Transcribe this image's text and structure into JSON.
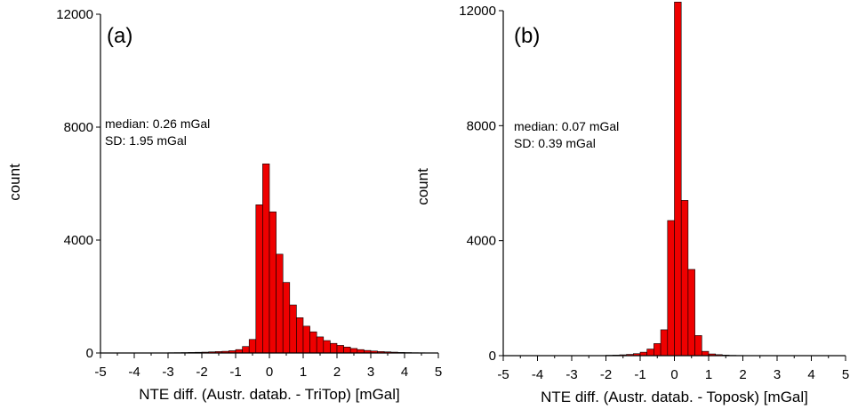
{
  "chart_data": [
    {
      "type": "bar",
      "panel_label": "(a)",
      "xlabel": "NTE diff. (Austr. datab. - TriTop) [mGal]",
      "ylabel": "count",
      "xlim": [
        -5,
        5
      ],
      "ylim": [
        0,
        12000
      ],
      "xticks": [
        -5,
        -4,
        -3,
        -2,
        -1,
        0,
        1,
        2,
        3,
        4,
        5
      ],
      "yticks": [
        0,
        4000,
        8000,
        12000
      ],
      "bin_width": 0.2,
      "annotation": [
        "median: 0.26 mGal",
        "SD: 1.95 mGal"
      ],
      "bar_color": "#ee0000",
      "bins": [
        {
          "x0": -3.0,
          "count": 10
        },
        {
          "x0": -2.8,
          "count": 12
        },
        {
          "x0": -2.6,
          "count": 15
        },
        {
          "x0": -2.4,
          "count": 20
        },
        {
          "x0": -2.2,
          "count": 25
        },
        {
          "x0": -2.0,
          "count": 30
        },
        {
          "x0": -1.8,
          "count": 40
        },
        {
          "x0": -1.6,
          "count": 50
        },
        {
          "x0": -1.4,
          "count": 60
        },
        {
          "x0": -1.2,
          "count": 80
        },
        {
          "x0": -1.0,
          "count": 120
        },
        {
          "x0": -0.8,
          "count": 230
        },
        {
          "x0": -0.6,
          "count": 480
        },
        {
          "x0": -0.4,
          "count": 5250
        },
        {
          "x0": -0.2,
          "count": 6700
        },
        {
          "x0": 0.0,
          "count": 5000
        },
        {
          "x0": 0.2,
          "count": 3500
        },
        {
          "x0": 0.4,
          "count": 2500
        },
        {
          "x0": 0.6,
          "count": 1700
        },
        {
          "x0": 0.8,
          "count": 1250
        },
        {
          "x0": 1.0,
          "count": 950
        },
        {
          "x0": 1.2,
          "count": 750
        },
        {
          "x0": 1.4,
          "count": 570
        },
        {
          "x0": 1.6,
          "count": 440
        },
        {
          "x0": 1.8,
          "count": 340
        },
        {
          "x0": 2.0,
          "count": 270
        },
        {
          "x0": 2.2,
          "count": 210
        },
        {
          "x0": 2.4,
          "count": 160
        },
        {
          "x0": 2.6,
          "count": 120
        },
        {
          "x0": 2.8,
          "count": 90
        },
        {
          "x0": 3.0,
          "count": 70
        },
        {
          "x0": 3.2,
          "count": 50
        },
        {
          "x0": 3.4,
          "count": 40
        },
        {
          "x0": 3.6,
          "count": 30
        },
        {
          "x0": 3.8,
          "count": 20
        },
        {
          "x0": 4.0,
          "count": 15
        },
        {
          "x0": 4.2,
          "count": 10
        },
        {
          "x0": 4.4,
          "count": 8
        },
        {
          "x0": 4.6,
          "count": 5
        }
      ]
    },
    {
      "type": "bar",
      "panel_label": "(b)",
      "xlabel": "NTE diff. (Austr. datab. - Toposk) [mGal]",
      "ylabel": "count",
      "xlim": [
        -5,
        5
      ],
      "ylim": [
        0,
        12000
      ],
      "xticks": [
        -5,
        -4,
        -3,
        -2,
        -1,
        0,
        1,
        2,
        3,
        4,
        5
      ],
      "yticks": [
        0,
        4000,
        8000,
        12000
      ],
      "bin_width": 0.2,
      "annotation": [
        "median: 0.07 mGal",
        "SD: 0.39 mGal"
      ],
      "bar_color": "#ee0000",
      "bins": [
        {
          "x0": -2.0,
          "count": 15
        },
        {
          "x0": -1.8,
          "count": 20
        },
        {
          "x0": -1.6,
          "count": 30
        },
        {
          "x0": -1.4,
          "count": 45
        },
        {
          "x0": -1.2,
          "count": 70
        },
        {
          "x0": -1.0,
          "count": 120
        },
        {
          "x0": -0.8,
          "count": 230
        },
        {
          "x0": -0.6,
          "count": 420
        },
        {
          "x0": -0.4,
          "count": 900
        },
        {
          "x0": -0.2,
          "count": 4700
        },
        {
          "x0": 0.0,
          "count": 12300
        },
        {
          "x0": 0.2,
          "count": 5400
        },
        {
          "x0": 0.4,
          "count": 3000
        },
        {
          "x0": 0.6,
          "count": 700
        },
        {
          "x0": 0.8,
          "count": 150
        },
        {
          "x0": 1.0,
          "count": 60
        },
        {
          "x0": 1.2,
          "count": 35
        },
        {
          "x0": 1.4,
          "count": 20
        },
        {
          "x0": 1.6,
          "count": 12
        },
        {
          "x0": 1.8,
          "count": 8
        },
        {
          "x0": 2.0,
          "count": 5
        }
      ]
    }
  ]
}
